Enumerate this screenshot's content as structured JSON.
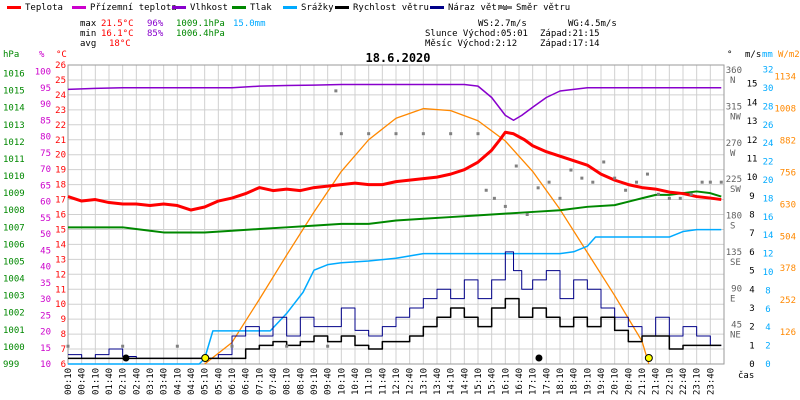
{
  "colors": {
    "temp": "#ff0000",
    "feels": "#cc00cc",
    "humidity": "#8800cc",
    "pressure": "#008800",
    "rain": "#00aaff",
    "wind": "#000000",
    "gust": "#000088",
    "direction": "#808080",
    "sun": "#ff8800",
    "grid": "#d0d0d0"
  },
  "legend": [
    {
      "key": "temp",
      "label": "Teplota",
      "color": "#ff0000"
    },
    {
      "key": "feels",
      "label": "Přízemní teplota",
      "color": "#cc00cc"
    },
    {
      "key": "humidity",
      "label": "Vlhkost",
      "color": "#8800cc"
    },
    {
      "key": "pressure",
      "label": "Tlak",
      "color": "#008800"
    },
    {
      "key": "rain",
      "label": "Srážky",
      "color": "#00aaff"
    },
    {
      "key": "wind",
      "label": "Rychlost větru",
      "color": "#000000"
    },
    {
      "key": "gust",
      "label": "Náraz větru",
      "color": "#000088"
    },
    {
      "key": "direction",
      "label": "Směr větru",
      "color": "#808080"
    }
  ],
  "stats": {
    "max_label": "max",
    "min_label": "min",
    "avg_label": "avg",
    "max_temp": "21.5°C",
    "max_hum": "96%",
    "max_press": "1009.1hPa",
    "max_rain": "15.0mm",
    "min_temp": "16.1°C",
    "min_hum": "85%",
    "min_press": "1006.4hPa",
    "avg_temp": "18°C",
    "ws": "WS:2.7m/s",
    "wg": "WG:4.5m/s",
    "sun_rise": "Slunce Východ:05:01",
    "sun_set": "Západ:21:15",
    "moon_rise": "Měsíc Východ:2:12",
    "moon_set": "Západ:17:14"
  },
  "chart_data": {
    "type": "line",
    "title": "18.6.2020",
    "xlabel": "čas",
    "x_ticks": [
      "00:10",
      "00:40",
      "01:10",
      "01:40",
      "02:10",
      "02:40",
      "03:10",
      "03:40",
      "04:10",
      "04:40",
      "05:10",
      "05:40",
      "06:10",
      "06:40",
      "07:10",
      "07:40",
      "08:10",
      "08:40",
      "09:10",
      "09:40",
      "10:10",
      "10:40",
      "11:10",
      "11:40",
      "12:10",
      "12:40",
      "13:10",
      "13:40",
      "14:10",
      "14:40",
      "15:10",
      "15:40",
      "16:10",
      "16:40",
      "17:10",
      "17:40",
      "18:10",
      "18:40",
      "19:10",
      "19:40",
      "20:10",
      "20:40",
      "21:10",
      "21:40",
      "22:10",
      "22:40",
      "23:10",
      "23:40"
    ],
    "axes": {
      "hpa": {
        "label": "hPa",
        "ticks": [
          "1016",
          "1015",
          "1014",
          "1013",
          "1012",
          "1011",
          "1010",
          "1009",
          "1008",
          "1007",
          "1006",
          "1005",
          "1004",
          "1003",
          "1002",
          "1001",
          "1000",
          "999"
        ],
        "range": [
          999,
          1016.5
        ]
      },
      "pct": {
        "label": "%",
        "ticks": [
          "100",
          "95",
          "90",
          "85",
          "80",
          "75",
          "70",
          "65",
          "60",
          "55",
          "50",
          "45",
          "40",
          "35",
          "30",
          "25",
          "20",
          "15",
          "10"
        ],
        "range": [
          10,
          102
        ]
      },
      "degc": {
        "label": "°C",
        "ticks": [
          "26",
          "25",
          "24",
          "23",
          "22",
          "21",
          "20",
          "19",
          "18",
          "17",
          "16",
          "15",
          "14",
          "13",
          "12",
          "11",
          "10",
          "9",
          "8",
          "7",
          "6"
        ],
        "range": [
          6,
          26.5
        ]
      },
      "dir": {
        "label": "°",
        "ticks": [
          "360",
          "315",
          "270",
          "225",
          "180",
          "135",
          "90",
          "45"
        ],
        "compass": [
          "N",
          "NW",
          "W",
          "SW",
          "S",
          "SE",
          "E",
          "NE"
        ]
      },
      "ms": {
        "label": "m/s",
        "ticks": [
          "15",
          "14",
          "13",
          "12",
          "11",
          "10",
          "9",
          "8",
          "7",
          "6",
          "5",
          "4",
          "3",
          "2",
          "1",
          "0"
        ]
      },
      "mm": {
        "label": "mm",
        "ticks": [
          "32",
          "30",
          "28",
          "26",
          "24",
          "22",
          "20",
          "18",
          "16",
          "14",
          "12",
          "10",
          "8",
          "6",
          "4",
          "2",
          "0"
        ]
      },
      "wm2": {
        "label": "W/m2",
        "ticks": [
          "1134",
          "1008",
          "882",
          "756",
          "630",
          "504",
          "378",
          "252",
          "126"
        ]
      }
    },
    "series": [
      {
        "key": "temp",
        "name": "Teplota",
        "axis": "degc",
        "x": [
          0,
          0.5,
          1,
          1.5,
          2,
          2.5,
          3,
          3.5,
          4,
          4.5,
          5,
          5.5,
          6,
          6.5,
          7,
          7.5,
          8,
          8.5,
          9,
          9.5,
          10,
          10.5,
          11,
          11.5,
          12,
          12.5,
          13,
          13.5,
          14,
          14.5,
          15,
          15.5,
          15.8,
          16,
          16.3,
          16.7,
          17,
          17.5,
          18,
          18.5,
          19,
          19.5,
          20,
          20.5,
          21,
          21.5,
          22,
          22.5,
          23,
          23.5,
          23.9
        ],
        "y": [
          17.2,
          16.9,
          17.0,
          16.8,
          16.7,
          16.7,
          16.6,
          16.7,
          16.6,
          16.3,
          16.5,
          16.9,
          17.1,
          17.4,
          17.8,
          17.6,
          17.7,
          17.6,
          17.8,
          17.9,
          18.0,
          18.1,
          18.0,
          18.0,
          18.2,
          18.3,
          18.4,
          18.5,
          18.7,
          19.0,
          19.5,
          20.3,
          21.0,
          21.5,
          21.4,
          21.0,
          20.6,
          20.2,
          19.9,
          19.6,
          19.3,
          18.7,
          18.3,
          18.0,
          17.8,
          17.7,
          17.5,
          17.4,
          17.2,
          17.1,
          17.0
        ]
      },
      {
        "key": "humidity",
        "name": "Vlhkost",
        "axis": "pct",
        "x": [
          0,
          1,
          2,
          3,
          4,
          5,
          6,
          7,
          8,
          9,
          10,
          11,
          12,
          13,
          14,
          14.5,
          15,
          15.5,
          16,
          16.3,
          16.6,
          17,
          17.5,
          18,
          19,
          20,
          21,
          22,
          23,
          23.9
        ],
        "y": [
          94.5,
          94.8,
          95,
          95,
          95,
          95,
          95,
          95.5,
          95.7,
          95.8,
          96,
          96,
          96,
          96,
          96,
          96,
          95.5,
          92,
          86.5,
          85,
          86.5,
          89,
          92,
          94,
          95,
          95,
          95,
          95,
          95,
          95
        ]
      },
      {
        "key": "pressure",
        "name": "Tlak",
        "axis": "hpa",
        "x": [
          0,
          1,
          2,
          3,
          3.5,
          4,
          5,
          6,
          7,
          8,
          9,
          10,
          11,
          12,
          13,
          14,
          15,
          16,
          17,
          18,
          19,
          20,
          20.5,
          21,
          21.5,
          22,
          22.5,
          23,
          23.5,
          23.9
        ],
        "y": [
          1007.0,
          1007.0,
          1007.0,
          1006.8,
          1006.7,
          1006.7,
          1006.7,
          1006.8,
          1006.9,
          1007.0,
          1007.1,
          1007.2,
          1007.2,
          1007.4,
          1007.5,
          1007.6,
          1007.7,
          1007.8,
          1007.9,
          1008.0,
          1008.2,
          1008.3,
          1008.5,
          1008.7,
          1008.9,
          1008.9,
          1009.0,
          1009.1,
          1009.0,
          1008.8
        ]
      },
      {
        "key": "rain",
        "name": "Srážky",
        "axis": "mm",
        "x": [
          0,
          4.8,
          5.0,
          5.3,
          5.7,
          6.0,
          6.5,
          6.9,
          7.4,
          8.0,
          8.6,
          9.0,
          9.5,
          10,
          11,
          12,
          13,
          14,
          15,
          16,
          17,
          17.5,
          18,
          18.5,
          19,
          19.3,
          20,
          21,
          22,
          22.5,
          23,
          23.9
        ],
        "y": [
          0,
          0,
          0.6,
          3.6,
          3.6,
          3.6,
          3.6,
          3.6,
          3.6,
          5.5,
          7.8,
          10.2,
          10.8,
          11.0,
          11.2,
          11.5,
          12.0,
          12.0,
          12.0,
          12.0,
          12.0,
          12.0,
          12.0,
          12.2,
          12.8,
          13.8,
          13.8,
          13.8,
          13.8,
          14.4,
          14.6,
          14.6
        ]
      },
      {
        "key": "wind",
        "name": "Rychlost větru",
        "axis": "ms",
        "x": [
          0,
          2,
          4,
          6,
          6.5,
          7,
          7.5,
          8,
          8.5,
          9,
          9.5,
          10,
          10.5,
          11,
          11.5,
          12,
          12.5,
          13,
          13.5,
          14,
          14.5,
          15,
          15.5,
          16,
          16.5,
          17,
          17.5,
          18,
          18.5,
          19,
          19.5,
          20,
          20.5,
          21,
          21.5,
          22,
          22.5,
          23,
          23.9
        ],
        "y": [
          0.3,
          0.3,
          0.3,
          0.3,
          0.8,
          1.0,
          1.2,
          1.0,
          1.2,
          1.5,
          1.2,
          1.5,
          1.0,
          0.8,
          1.2,
          1.2,
          1.5,
          2.0,
          2.5,
          3.0,
          2.5,
          2.0,
          3.0,
          3.5,
          2.5,
          3.0,
          2.5,
          2.0,
          2.5,
          2.0,
          2.5,
          1.8,
          1.2,
          1.5,
          1.5,
          0.8,
          1.0,
          1.0,
          1.0
        ]
      },
      {
        "key": "gust",
        "name": "Náraz větru",
        "axis": "ms",
        "x": [
          0,
          0.5,
          1,
          1.5,
          2,
          2.5,
          3,
          3.5,
          4,
          4.5,
          5,
          5.5,
          6,
          6.5,
          7,
          7.5,
          8,
          8.5,
          9,
          9.5,
          10,
          10.5,
          11,
          11.5,
          12,
          12.5,
          13,
          13.5,
          14,
          14.5,
          15,
          15.5,
          16,
          16.3,
          16.6,
          17,
          17.5,
          18,
          18.5,
          19,
          19.5,
          20,
          20.5,
          21,
          21.5,
          22,
          22.5,
          23,
          23.5,
          23.9
        ],
        "y": [
          0.5,
          0.3,
          0.5,
          0.8,
          0.4,
          0.3,
          0.3,
          0.3,
          0.3,
          0.3,
          0.3,
          0.5,
          1.5,
          2.0,
          1.5,
          2.5,
          1.5,
          2.5,
          2.0,
          2.0,
          3.0,
          1.8,
          1.5,
          2.0,
          2.5,
          3.0,
          3.5,
          4.0,
          3.5,
          4.5,
          3.5,
          4.5,
          6.0,
          5.0,
          4.0,
          4.5,
          5.0,
          3.5,
          4.5,
          4.0,
          3.0,
          2.5,
          2.0,
          1.5,
          2.5,
          1.5,
          2.0,
          1.5,
          1.0,
          1.0
        ]
      },
      {
        "key": "direction",
        "name": "Směr větru",
        "axis": "dir",
        "x": [
          0,
          2,
          4,
          6,
          8,
          9.5,
          9.8,
          10,
          11,
          12,
          13,
          14,
          15,
          15.3,
          15.6,
          16,
          16.4,
          16.8,
          17.2,
          17.6,
          18,
          18.4,
          18.8,
          19.2,
          19.6,
          20,
          20.4,
          20.8,
          21.2,
          21.6,
          22,
          22.4,
          22.8,
          23.2,
          23.5,
          23.9
        ],
        "y": [
          22,
          22,
          22,
          22,
          22,
          22,
          338,
          285,
          285,
          285,
          285,
          285,
          285,
          215,
          205,
          195,
          245,
          185,
          218,
          225,
          205,
          240,
          230,
          225,
          250,
          230,
          215,
          225,
          235,
          210,
          205,
          205,
          210,
          225,
          225,
          225
        ]
      },
      {
        "key": "sun",
        "name": "",
        "axis": "wm2",
        "x": [
          5.0,
          6,
          7,
          8,
          9,
          10,
          11,
          12,
          13,
          14,
          15,
          16,
          17,
          18,
          19,
          20,
          21,
          21.25
        ],
        "y": [
          0,
          85,
          255,
          430,
          600,
          760,
          885,
          970,
          1008,
          1000,
          960,
          880,
          760,
          610,
          440,
          270,
          90,
          0
        ]
      }
    ]
  }
}
